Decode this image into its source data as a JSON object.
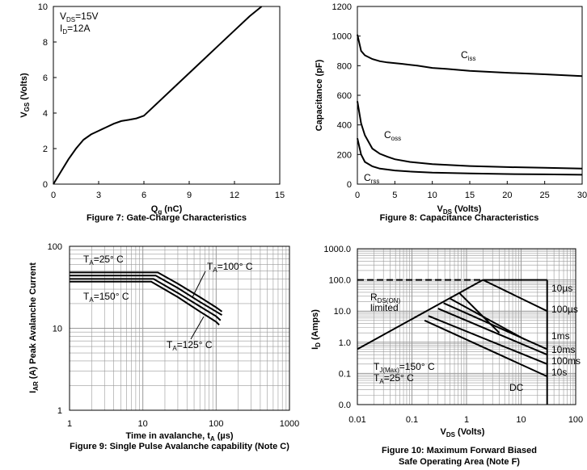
{
  "chart_data": [
    {
      "type": "line",
      "caption": "Figure 7: Gate-Charge Characteristics",
      "xlabel": "Qg (nC)",
      "xlabel_main": "Q",
      "xlabel_sub": "g",
      "xlabel_rest": " (nC)",
      "ylabel": "VGS (Volts)",
      "ylabel_main": "V",
      "ylabel_sub": "GS",
      "ylabel_rest": " (Volts)",
      "xlim": [
        0,
        15
      ],
      "ylim": [
        0,
        10
      ],
      "xticks": [
        "0",
        "3",
        "6",
        "9",
        "12",
        "15"
      ],
      "yticks": [
        "0",
        "2",
        "4",
        "6",
        "8",
        "10"
      ],
      "conditions": [
        {
          "main": "V",
          "sub": "DS",
          "rest": "=15V"
        },
        {
          "main": "I",
          "sub": "D",
          "rest": "=12A"
        }
      ],
      "series": [
        {
          "x": [
            0,
            0.5,
            1,
            1.5,
            2,
            2.5,
            3,
            3.5,
            4,
            4.5,
            5,
            5.5,
            6,
            7,
            8,
            9,
            10,
            11,
            12,
            13,
            13.8
          ],
          "y": [
            0,
            0.7,
            1.4,
            2.0,
            2.5,
            2.8,
            3.0,
            3.2,
            3.4,
            3.55,
            3.62,
            3.7,
            3.85,
            4.65,
            5.45,
            6.25,
            7.05,
            7.85,
            8.65,
            9.45,
            10
          ]
        }
      ]
    },
    {
      "type": "line",
      "caption": "Figure 8: Capacitance Characteristics",
      "xlabel": "VDS (Volts)",
      "xlabel_main": "V",
      "xlabel_sub": "DS",
      "xlabel_rest": " (Volts)",
      "ylabel": "Capacitance (pF)",
      "xlim": [
        0,
        30
      ],
      "ylim": [
        0,
        1200
      ],
      "xticks": [
        "0",
        "5",
        "10",
        "15",
        "20",
        "25",
        "30"
      ],
      "yticks": [
        "0",
        "200",
        "400",
        "600",
        "800",
        "1000",
        "1200"
      ],
      "series": [
        {
          "name": "Ciss",
          "name_main": "C",
          "name_sub": "iss",
          "x": [
            0,
            0.5,
            1,
            2,
            3,
            4,
            6,
            8,
            10,
            12,
            15,
            20,
            25,
            30
          ],
          "y": [
            1010,
            900,
            870,
            845,
            830,
            822,
            812,
            800,
            785,
            778,
            765,
            752,
            742,
            730
          ]
        },
        {
          "name": "Coss",
          "name_main": "C",
          "name_sub": "oss",
          "x": [
            0,
            0.5,
            1,
            2,
            3,
            4,
            5,
            7,
            10,
            15,
            20,
            25,
            30
          ],
          "y": [
            560,
            410,
            330,
            240,
            205,
            185,
            168,
            150,
            135,
            122,
            115,
            110,
            105
          ]
        },
        {
          "name": "Crss",
          "name_main": "C",
          "name_sub": "rss",
          "x": [
            0,
            0.5,
            1,
            2,
            3,
            5,
            7,
            10,
            15,
            20,
            25,
            30
          ],
          "y": [
            310,
            200,
            150,
            120,
            105,
            92,
            85,
            78,
            72,
            68,
            66,
            63
          ]
        }
      ]
    },
    {
      "type": "line",
      "caption": "Figure 9: Single Pulse Avalanche capability (Note C)",
      "xlabel": "Time in avalanche, tA (µs)",
      "xlabel_pre": "Time in avalanche, t",
      "xlabel_sub": "A",
      "xlabel_rest": " (µs)",
      "ylabel": "IAR (A) Peak Avalanche Current",
      "ylabel_main": "I",
      "ylabel_sub": "AR",
      "ylabel_rest": " (A) Peak Avalanche Current",
      "xscale": "log",
      "yscale": "log",
      "xlim": [
        1,
        1000
      ],
      "ylim": [
        1,
        100
      ],
      "xticks": [
        "1",
        "10",
        "100",
        "1000"
      ],
      "yticks": [
        "1",
        "10",
        "100"
      ],
      "annotations": [
        {
          "main": "T",
          "sub": "A",
          "rest": "=25° C"
        },
        {
          "main": "T",
          "sub": "A",
          "rest": "=100° C"
        },
        {
          "main": "T",
          "sub": "A",
          "rest": "=150° C"
        },
        {
          "main": "T",
          "sub": "A",
          "rest": "=125° C"
        }
      ],
      "series": [
        {
          "temp": "25",
          "x": [
            1,
            10,
            16,
            30,
            60,
            100,
            120
          ],
          "y": [
            48,
            48,
            48,
            35,
            24,
            18,
            16
          ]
        },
        {
          "temp": "100",
          "x": [
            1,
            10,
            15,
            30,
            60,
            100,
            120
          ],
          "y": [
            44,
            44,
            44,
            31,
            21,
            16,
            14.5
          ]
        },
        {
          "temp": "125",
          "x": [
            1,
            10,
            14,
            30,
            60,
            100,
            115
          ],
          "y": [
            40,
            40,
            40,
            27,
            18.5,
            14,
            12.5
          ]
        },
        {
          "temp": "150",
          "x": [
            1,
            10,
            13,
            30,
            60,
            100,
            110
          ],
          "y": [
            37,
            37,
            37,
            24,
            16,
            12,
            11
          ]
        }
      ]
    },
    {
      "type": "line",
      "caption_line1": "Figure 10: Maximum Forward Biased",
      "caption_line2": "Safe Operating Area (Note F)",
      "xlabel": "VDS (Volts)",
      "xlabel_main": "V",
      "xlabel_sub": "DS",
      "xlabel_rest": " (Volts)",
      "ylabel": "ID (Amps)",
      "ylabel_main": "I",
      "ylabel_sub": "D",
      "ylabel_rest": " (Amps)",
      "xscale": "log",
      "yscale": "log",
      "xlim": [
        0.01,
        100
      ],
      "ylim": [
        0,
        1000
      ],
      "xticks": [
        "0.01",
        "0.1",
        "1",
        "10",
        "100"
      ],
      "yticks": [
        "0.0",
        "0.1",
        "1.0",
        "10.0",
        "100.0",
        "1000.0"
      ],
      "rdson_label": {
        "main": "R",
        "sub": "DS(ON)",
        "line2": "limited"
      },
      "conditions": [
        {
          "main": "T",
          "sub": "J(Max)",
          "rest": "=150° C"
        },
        {
          "main": "T",
          "sub": "A",
          "rest": "=25° C"
        }
      ],
      "pulse_labels": [
        "10µs",
        "100µs",
        "1ms",
        "10ms",
        "100ms",
        "10s",
        "DC"
      ],
      "limits": {
        "current_max": 100,
        "vds_max": 30
      },
      "series": [
        {
          "name": "RDS(ON) limited",
          "x": [
            0.01,
            2
          ],
          "y": [
            0.6,
            100
          ]
        },
        {
          "name": "10µs",
          "x": [
            2,
            30
          ],
          "y": [
            100,
            10
          ]
        },
        {
          "name": "100µs",
          "x": [
            0.75,
            4
          ],
          "y": [
            37,
            2
          ]
        },
        {
          "name": "1ms",
          "x": [
            0.5,
            12
          ],
          "y": [
            25,
            1.2
          ]
        },
        {
          "name": "10ms",
          "x": [
            0.38,
            30
          ],
          "y": [
            18,
            0.6
          ]
        },
        {
          "name": "100ms",
          "x": [
            0.3,
            30
          ],
          "y": [
            12,
            0.4
          ]
        },
        {
          "name": "10s",
          "x": [
            0.2,
            30
          ],
          "y": [
            7,
            0.2
          ]
        },
        {
          "name": "DC",
          "x": [
            0.17,
            30
          ],
          "y": [
            5,
            0.08
          ]
        }
      ]
    }
  ]
}
